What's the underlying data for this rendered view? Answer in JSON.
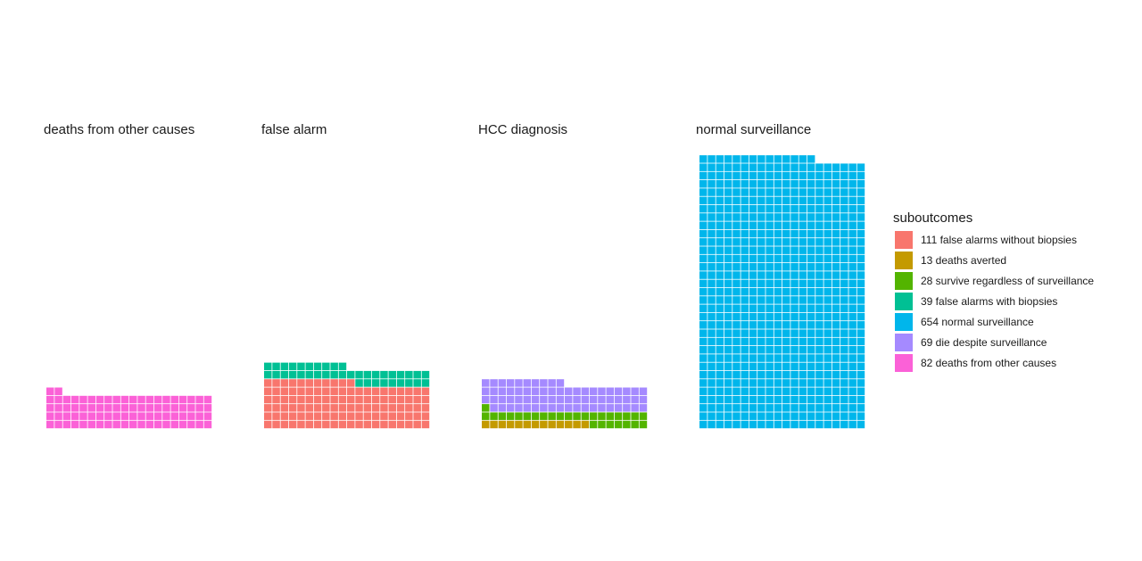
{
  "chart_data": {
    "type": "waffle",
    "columns": 20,
    "facets": [
      {
        "title": "deaths from other causes",
        "series": [
          {
            "name": "82 deaths from other causes",
            "count": 82
          }
        ]
      },
      {
        "title": "false alarm",
        "series": [
          {
            "name": "111 false alarms without biopsies",
            "count": 111
          },
          {
            "name": "39 false alarms with biopsies",
            "count": 39
          }
        ]
      },
      {
        "title": "HCC diagnosis",
        "series": [
          {
            "name": "13 deaths averted",
            "count": 13
          },
          {
            "name": "28 survive regardless of surveillance",
            "count": 28
          },
          {
            "name": "69 die despite surveillance",
            "count": 69
          }
        ]
      },
      {
        "title": "normal surveillance",
        "series": [
          {
            "name": "654 normal surveillance",
            "count": 654
          }
        ]
      }
    ],
    "legend": {
      "title": "suboutcomes",
      "position": "right",
      "items": [
        {
          "label": "111 false alarms without biopsies",
          "color": "#F8766D"
        },
        {
          "label": "13 deaths averted",
          "color": "#C49A00"
        },
        {
          "label": "28 survive regardless of surveillance",
          "color": "#53B400"
        },
        {
          "label": "39 false alarms with biopsies",
          "color": "#00C094"
        },
        {
          "label": "654 normal surveillance",
          "color": "#00B6EB"
        },
        {
          "label": "69 die despite surveillance",
          "color": "#A58AFF"
        },
        {
          "label": "82 deaths from other causes",
          "color": "#FB61D7"
        }
      ]
    }
  }
}
